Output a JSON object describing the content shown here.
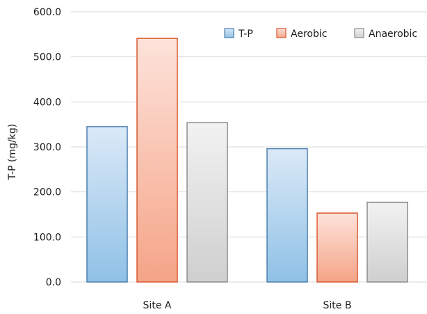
{
  "chart_data": {
    "type": "bar",
    "title": "",
    "xlabel": "",
    "ylabel": "T-P (mg/kg)",
    "ylim": [
      0,
      600
    ],
    "yticks": [
      "0.0",
      "100.0",
      "200.0",
      "300.0",
      "400.0",
      "500.0",
      "600.0"
    ],
    "categories": [
      "Site A",
      "Site B"
    ],
    "series": [
      {
        "name": "T-P",
        "values": [
          345,
          296
        ],
        "color_top": "#dbe9f7",
        "color_bottom": "#8fc1e6",
        "stroke": "#4a7fae"
      },
      {
        "name": "Aerobic",
        "values": [
          541,
          153
        ],
        "color_top": "#fde2da",
        "color_bottom": "#f5a487",
        "stroke": "#d9582e"
      },
      {
        "name": "Anaerobic",
        "values": [
          354,
          177
        ],
        "color_top": "#f2f2f2",
        "color_bottom": "#cfcfcf",
        "stroke": "#8c8c8c"
      }
    ],
    "grid": true,
    "legend_position": "top-right"
  }
}
